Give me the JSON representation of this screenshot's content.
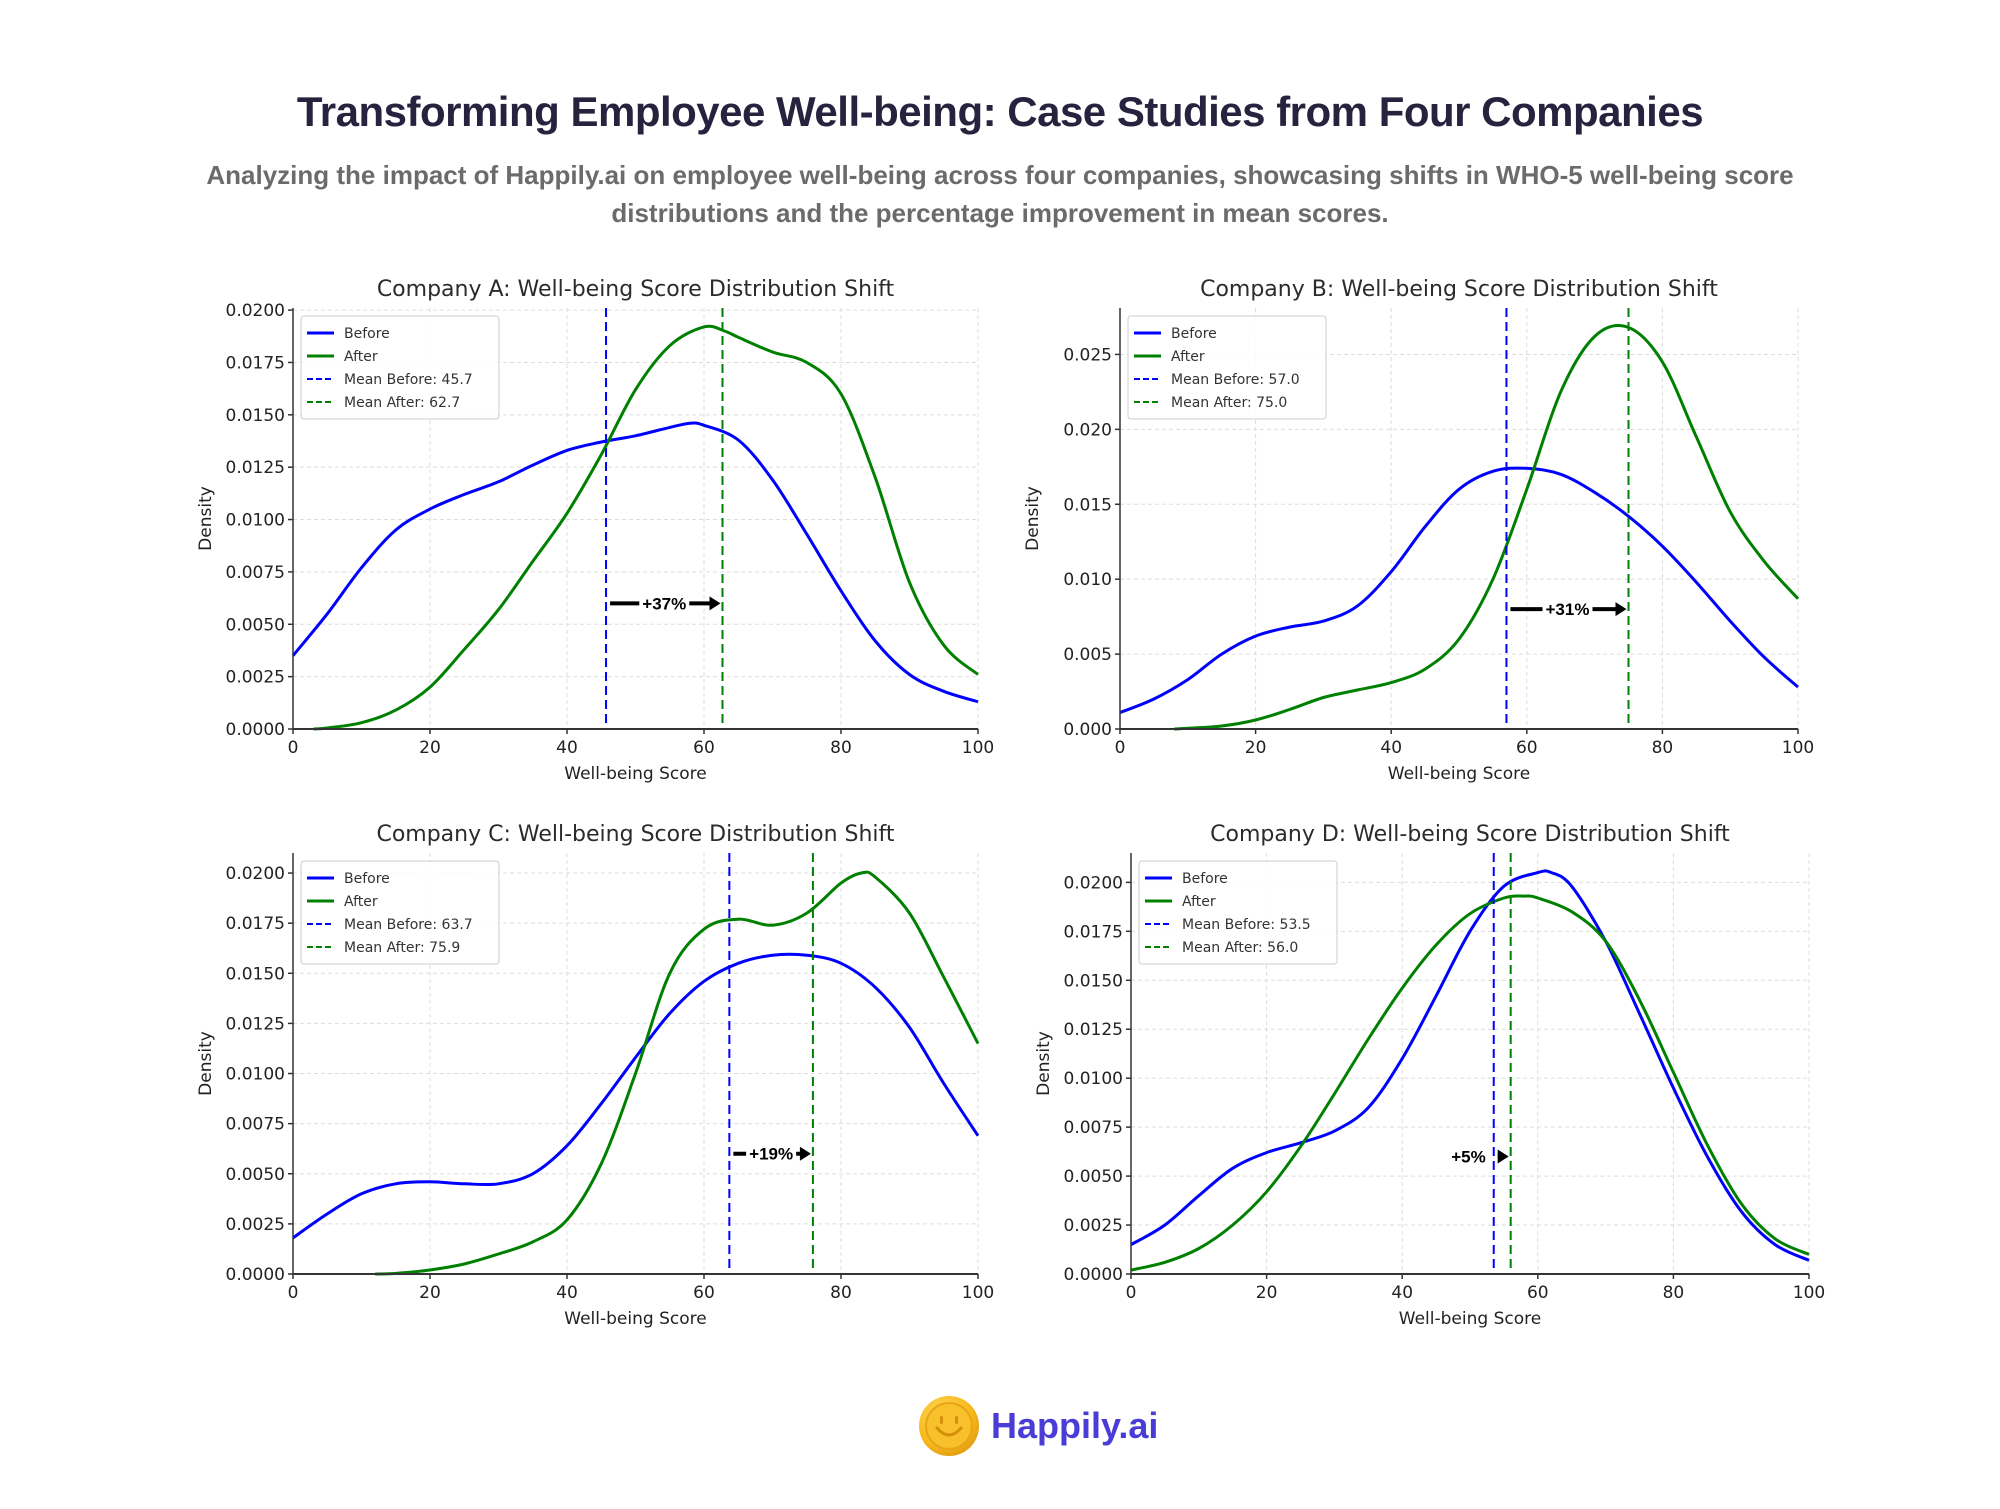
{
  "header": {
    "title": "Transforming Employee Well-being: Case Studies from Four Companies",
    "subtitle_line1": "Analyzing the impact of Happily.ai on employee well-being across four companies, showcasing shifts in WHO-5 well-being score",
    "subtitle_line2": "distributions and the percentage improvement in mean scores."
  },
  "logo": {
    "text": "Happily.ai",
    "icon": "smiley-coin-icon",
    "color": "#4a3cd6"
  },
  "colors": {
    "before": "#0000ff",
    "after": "#008000",
    "grid": "#dddddd",
    "axis": "#333333"
  },
  "chart_data": [
    {
      "type": "line",
      "title": "Company A: Well-being Score Distribution Shift",
      "xlabel": "Well-being Score",
      "ylabel": "Density",
      "xlim": [
        0,
        100
      ],
      "ylim": [
        0,
        0.0201
      ],
      "xticks": [
        "0",
        "20",
        "40",
        "60",
        "80",
        "100"
      ],
      "xtick_values": [
        0,
        20,
        40,
        60,
        80,
        100
      ],
      "yticks": [
        "0.0000",
        "0.0025",
        "0.0050",
        "0.0075",
        "0.0100",
        "0.0125",
        "0.0150",
        "0.0175",
        "0.0200"
      ],
      "ytick_values": [
        0,
        0.0025,
        0.005,
        0.0075,
        0.01,
        0.0125,
        0.015,
        0.0175,
        0.02
      ],
      "grid": true,
      "legend_position": "top-left",
      "legend": [
        "Before",
        "After",
        "Mean Before: 45.7",
        "Mean After: 62.7"
      ],
      "mean_before": 45.7,
      "mean_after": 62.7,
      "annotation": "+37%",
      "annotation_y": 0.006,
      "series": [
        {
          "name": "Before",
          "x": [
            0,
            5,
            10,
            15,
            20,
            25,
            30,
            35,
            40,
            45,
            50,
            55,
            58,
            60,
            65,
            70,
            75,
            80,
            85,
            90,
            95,
            100
          ],
          "y": [
            0.0035,
            0.0055,
            0.0077,
            0.0095,
            0.0105,
            0.0112,
            0.0118,
            0.0126,
            0.0133,
            0.0137,
            0.014,
            0.0144,
            0.0146,
            0.0145,
            0.0138,
            0.0119,
            0.0093,
            0.0066,
            0.0042,
            0.0026,
            0.0018,
            0.0013
          ]
        },
        {
          "name": "After",
          "x": [
            3,
            5,
            10,
            15,
            20,
            25,
            30,
            35,
            40,
            45,
            50,
            55,
            60,
            63,
            65,
            70,
            75,
            80,
            85,
            90,
            95,
            100
          ],
          "y": [
            0.0,
            5e-05,
            0.0003,
            0.0009,
            0.002,
            0.0038,
            0.0057,
            0.008,
            0.0103,
            0.0131,
            0.0162,
            0.0183,
            0.0192,
            0.019,
            0.0187,
            0.018,
            0.0175,
            0.016,
            0.012,
            0.007,
            0.004,
            0.0026
          ]
        }
      ]
    },
    {
      "type": "line",
      "title": "Company B: Well-being Score Distribution Shift",
      "xlabel": "Well-being Score",
      "ylabel": "Density",
      "xlim": [
        0,
        100
      ],
      "ylim": [
        0,
        0.0281
      ],
      "xticks": [
        "0",
        "20",
        "40",
        "60",
        "80",
        "100"
      ],
      "xtick_values": [
        0,
        20,
        40,
        60,
        80,
        100
      ],
      "yticks": [
        "0.000",
        "0.005",
        "0.010",
        "0.015",
        "0.020",
        "0.025"
      ],
      "ytick_values": [
        0,
        0.005,
        0.01,
        0.015,
        0.02,
        0.025
      ],
      "grid": true,
      "legend_position": "top-left",
      "legend": [
        "Before",
        "After",
        "Mean Before: 57.0",
        "Mean After: 75.0"
      ],
      "mean_before": 57.0,
      "mean_after": 75.0,
      "annotation": "+31%",
      "annotation_y": 0.008,
      "series": [
        {
          "name": "Before",
          "x": [
            0,
            5,
            10,
            15,
            20,
            25,
            30,
            35,
            40,
            45,
            50,
            55,
            60,
            65,
            70,
            75,
            80,
            85,
            90,
            95,
            100
          ],
          "y": [
            0.0011,
            0.002,
            0.0033,
            0.005,
            0.0062,
            0.0068,
            0.0072,
            0.0082,
            0.0105,
            0.0135,
            0.016,
            0.0172,
            0.0174,
            0.017,
            0.0158,
            0.0142,
            0.0122,
            0.0098,
            0.0072,
            0.0048,
            0.0028
          ]
        },
        {
          "name": "After",
          "x": [
            8,
            10,
            15,
            20,
            25,
            30,
            35,
            40,
            45,
            50,
            55,
            60,
            65,
            70,
            75,
            80,
            85,
            90,
            95,
            100
          ],
          "y": [
            0.0,
            5e-05,
            0.0002,
            0.0006,
            0.0013,
            0.0021,
            0.0026,
            0.0031,
            0.004,
            0.006,
            0.01,
            0.016,
            0.0225,
            0.0262,
            0.0268,
            0.0245,
            0.0195,
            0.0145,
            0.0112,
            0.0087
          ]
        }
      ]
    },
    {
      "type": "line",
      "title": "Company C: Well-being Score Distribution Shift",
      "xlabel": "Well-being Score",
      "ylabel": "Density",
      "xlim": [
        0,
        100
      ],
      "ylim": [
        0,
        0.021
      ],
      "xticks": [
        "0",
        "20",
        "40",
        "60",
        "80",
        "100"
      ],
      "xtick_values": [
        0,
        20,
        40,
        60,
        80,
        100
      ],
      "yticks": [
        "0.0000",
        "0.0025",
        "0.0050",
        "0.0075",
        "0.0100",
        "0.0125",
        "0.0150",
        "0.0175",
        "0.0200"
      ],
      "ytick_values": [
        0,
        0.0025,
        0.005,
        0.0075,
        0.01,
        0.0125,
        0.015,
        0.0175,
        0.02
      ],
      "grid": true,
      "legend_position": "top-left",
      "legend": [
        "Before",
        "After",
        "Mean Before: 63.7",
        "Mean After: 75.9"
      ],
      "mean_before": 63.7,
      "mean_after": 75.9,
      "annotation": "+19%",
      "annotation_y": 0.006,
      "series": [
        {
          "name": "Before",
          "x": [
            0,
            5,
            10,
            15,
            20,
            25,
            30,
            35,
            40,
            45,
            50,
            55,
            60,
            65,
            70,
            75,
            80,
            85,
            90,
            95,
            100
          ],
          "y": [
            0.0018,
            0.003,
            0.004,
            0.0045,
            0.0046,
            0.0045,
            0.0045,
            0.005,
            0.0064,
            0.0085,
            0.0108,
            0.013,
            0.0146,
            0.0155,
            0.0159,
            0.0159,
            0.0155,
            0.0143,
            0.0123,
            0.0095,
            0.0069
          ]
        },
        {
          "name": "After",
          "x": [
            12,
            15,
            20,
            25,
            30,
            35,
            40,
            45,
            50,
            55,
            60,
            65,
            70,
            75,
            80,
            83,
            85,
            90,
            95,
            100
          ],
          "y": [
            0.0,
            3e-05,
            0.0002,
            0.0005,
            0.001,
            0.0016,
            0.0027,
            0.0055,
            0.01,
            0.015,
            0.0172,
            0.0177,
            0.0174,
            0.018,
            0.0195,
            0.02,
            0.0198,
            0.018,
            0.0148,
            0.0115
          ]
        }
      ]
    },
    {
      "type": "line",
      "title": "Company D: Well-being Score Distribution Shift",
      "xlabel": "Well-being Score",
      "ylabel": "Density",
      "xlim": [
        0,
        100
      ],
      "ylim": [
        0,
        0.0215
      ],
      "xticks": [
        "0",
        "20",
        "40",
        "60",
        "80",
        "100"
      ],
      "xtick_values": [
        0,
        20,
        40,
        60,
        80,
        100
      ],
      "yticks": [
        "0.0000",
        "0.0025",
        "0.0050",
        "0.0075",
        "0.0100",
        "0.0125",
        "0.0150",
        "0.0175",
        "0.0200"
      ],
      "ytick_values": [
        0,
        0.0025,
        0.005,
        0.0075,
        0.01,
        0.0125,
        0.015,
        0.0175,
        0.02
      ],
      "grid": true,
      "legend_position": "top-left",
      "legend": [
        "Before",
        "After",
        "Mean Before: 53.5",
        "Mean After: 56.0"
      ],
      "mean_before": 53.5,
      "mean_after": 56.0,
      "annotation": "+5%",
      "annotation_y": 0.006,
      "series": [
        {
          "name": "Before",
          "x": [
            0,
            5,
            10,
            15,
            20,
            25,
            30,
            35,
            40,
            45,
            50,
            55,
            60,
            62,
            65,
            70,
            75,
            80,
            85,
            90,
            95,
            100
          ],
          "y": [
            0.0015,
            0.0025,
            0.004,
            0.0054,
            0.0062,
            0.0067,
            0.0073,
            0.0085,
            0.011,
            0.0142,
            0.0175,
            0.0198,
            0.0205,
            0.0205,
            0.0198,
            0.017,
            0.0133,
            0.0095,
            0.006,
            0.0032,
            0.0015,
            0.0007
          ]
        },
        {
          "name": "After",
          "x": [
            0,
            5,
            10,
            15,
            20,
            25,
            30,
            35,
            40,
            45,
            50,
            55,
            58,
            60,
            65,
            70,
            75,
            80,
            85,
            90,
            95,
            100
          ],
          "y": [
            0.0002,
            0.0006,
            0.0013,
            0.0025,
            0.0042,
            0.0065,
            0.0092,
            0.012,
            0.0146,
            0.0168,
            0.0184,
            0.0192,
            0.0193,
            0.0192,
            0.0185,
            0.017,
            0.014,
            0.0103,
            0.0066,
            0.0036,
            0.0018,
            0.001
          ]
        }
      ]
    }
  ]
}
